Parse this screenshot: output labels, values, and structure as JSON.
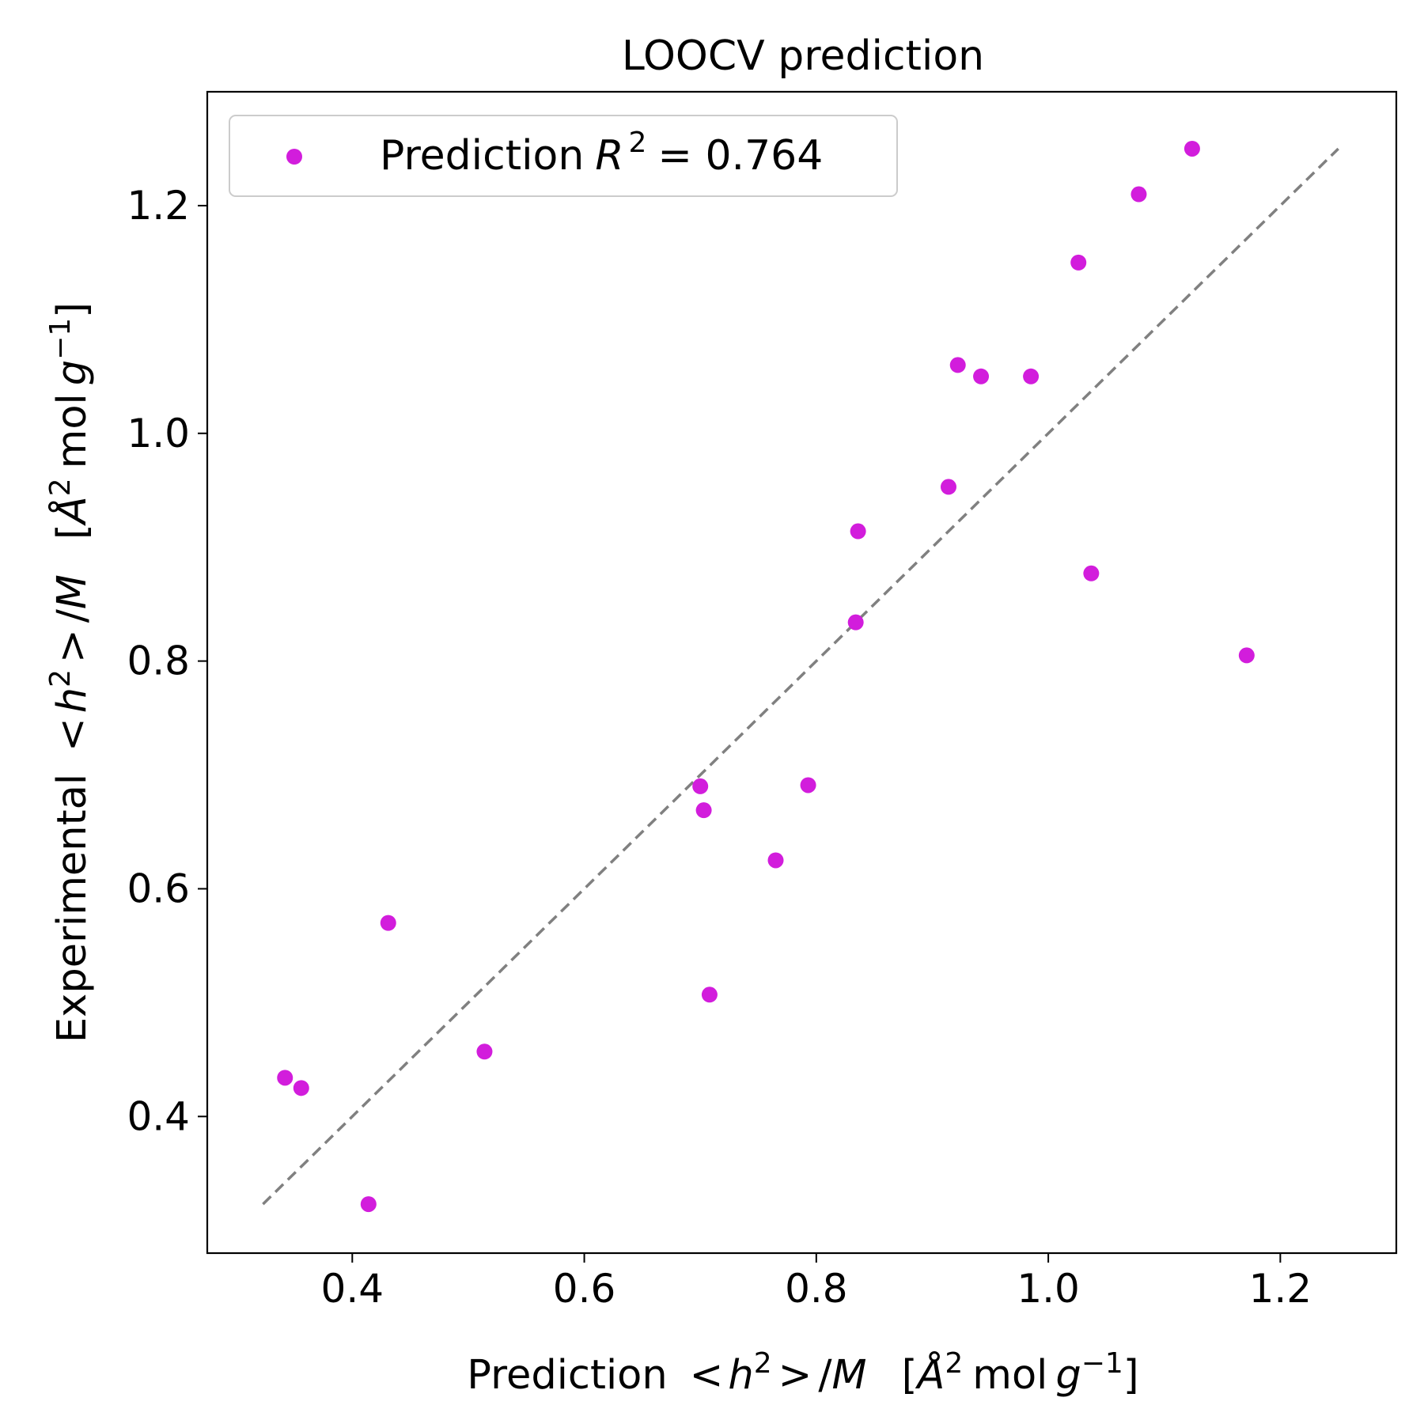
{
  "chart_data": {
    "type": "scatter",
    "title": "LOOCV prediction",
    "xlabel": {
      "prefix": "Prediction",
      "lt": "<",
      "var": "h",
      "exp": "2",
      "gt": ">",
      "slash": "/",
      "den": "M",
      "unit_open": "[",
      "unit_A": "Å",
      "unit_A_exp": "2",
      "unit_mol": "mol",
      "unit_g": "g",
      "unit_g_exp": "−1",
      "unit_close": "]"
    },
    "ylabel": {
      "prefix": "Experimental",
      "lt": "<",
      "var": "h",
      "exp": "2",
      "gt": ">",
      "slash": "/",
      "den": "M",
      "unit_open": "[",
      "unit_A": "Å",
      "unit_A_exp": "2",
      "unit_mol": "mol",
      "unit_g": "g",
      "unit_g_exp": "−1",
      "unit_close": "]"
    },
    "xlim": [
      0.275,
      1.3
    ],
    "ylim": [
      0.28,
      1.3
    ],
    "xticks": [
      {
        "value": 0.4,
        "label": "0.4"
      },
      {
        "value": 0.6,
        "label": "0.6"
      },
      {
        "value": 0.8,
        "label": "0.8"
      },
      {
        "value": 1.0,
        "label": "1.0"
      },
      {
        "value": 1.2,
        "label": "1.2"
      }
    ],
    "yticks": [
      {
        "value": 0.4,
        "label": "0.4"
      },
      {
        "value": 0.6,
        "label": "0.6"
      },
      {
        "value": 0.8,
        "label": "0.8"
      },
      {
        "value": 1.0,
        "label": "1.0"
      },
      {
        "value": 1.2,
        "label": "1.2"
      }
    ],
    "grid": false,
    "legend_position": "top-left",
    "reference_line": {
      "from": [
        0.323,
        0.323
      ],
      "to": [
        1.25,
        1.25
      ],
      "color": "#808080",
      "style": "dashed"
    },
    "series": [
      {
        "legend": {
          "prefix": "Prediction",
          "var": "R",
          "exp": "2",
          "suffix": "= 0.764"
        },
        "color": "#d21ddc",
        "points": [
          {
            "x": 0.342,
            "y": 0.434
          },
          {
            "x": 0.356,
            "y": 0.425
          },
          {
            "x": 0.414,
            "y": 0.323
          },
          {
            "x": 0.431,
            "y": 0.57
          },
          {
            "x": 0.514,
            "y": 0.457
          },
          {
            "x": 0.7,
            "y": 0.69
          },
          {
            "x": 0.703,
            "y": 0.669
          },
          {
            "x": 0.708,
            "y": 0.507
          },
          {
            "x": 0.765,
            "y": 0.625
          },
          {
            "x": 0.793,
            "y": 0.691
          },
          {
            "x": 0.834,
            "y": 0.834
          },
          {
            "x": 0.836,
            "y": 0.914
          },
          {
            "x": 0.914,
            "y": 0.953
          },
          {
            "x": 0.922,
            "y": 1.06
          },
          {
            "x": 0.942,
            "y": 1.05
          },
          {
            "x": 0.985,
            "y": 1.05
          },
          {
            "x": 1.026,
            "y": 1.15
          },
          {
            "x": 1.037,
            "y": 0.877
          },
          {
            "x": 1.078,
            "y": 1.21
          },
          {
            "x": 1.124,
            "y": 1.25
          },
          {
            "x": 1.171,
            "y": 0.805
          }
        ]
      }
    ]
  }
}
